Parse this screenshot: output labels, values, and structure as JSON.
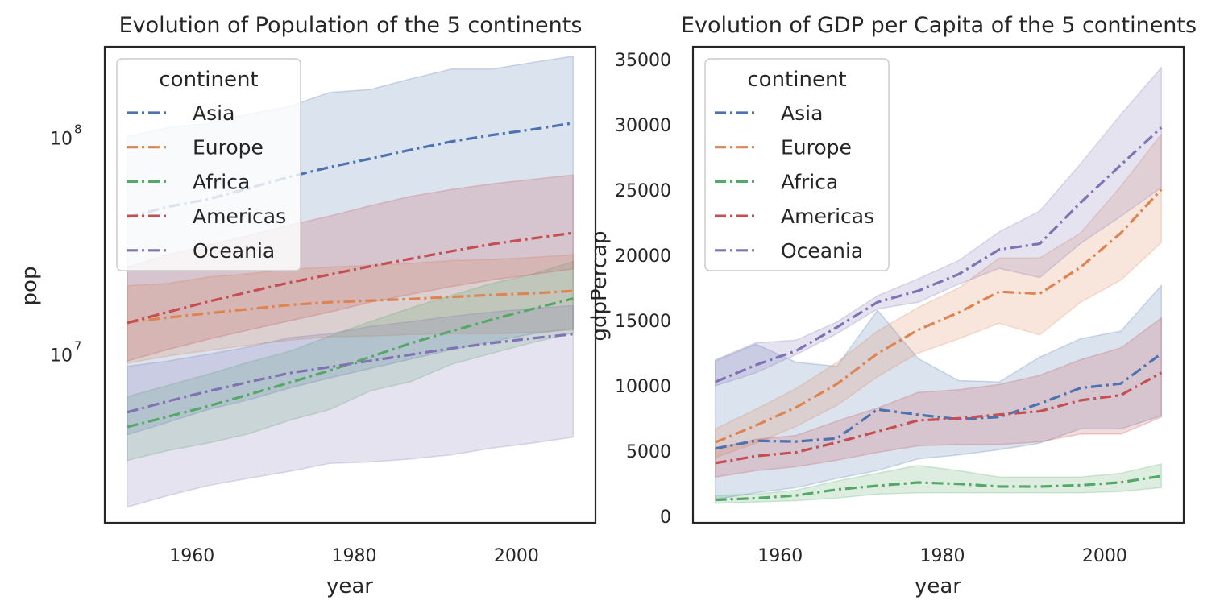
{
  "chart_data": [
    {
      "type": "line",
      "title": "Evolution of Population of the 5 continents",
      "xlabel": "year",
      "ylabel": "pop",
      "yscale": "log",
      "xlim": [
        1949.25,
        2009.75
      ],
      "ylim": [
        1650000,
        260000000
      ],
      "xticks": [
        1960,
        1980,
        2000
      ],
      "yticks": [
        {
          "value": 10000000,
          "base": "10",
          "exp": "7"
        },
        {
          "value": 100000000,
          "base": "10",
          "exp": "8"
        }
      ],
      "legend": {
        "title": "continent",
        "placement": "top-left"
      },
      "grid": false,
      "series": [
        {
          "name": "Asia",
          "color": "#4c72b0",
          "x": [
            1952,
            1957,
            1962,
            1967,
            1972,
            1977,
            1982,
            1987,
            1992,
            1997,
            2002,
            2007
          ],
          "values": [
            42300000,
            47400000,
            51400000,
            57700000,
            65200000,
            72300000,
            79100000,
            87000000,
            94900000,
            101700000,
            107900000,
            115500000
          ],
          "lower": [
            4200000,
            4800000,
            5500000,
            6100000,
            6900000,
            7700000,
            8500000,
            9400000,
            10400000,
            11300000,
            12300000,
            13000000
          ],
          "upper": [
            100000000,
            110000000,
            115000000,
            127000000,
            138000000,
            160000000,
            165000000,
            185000000,
            205000000,
            205000000,
            220000000,
            235000000
          ]
        },
        {
          "name": "Europe",
          "color": "#dd8452",
          "x": [
            1952,
            1957,
            1962,
            1967,
            1972,
            1977,
            1982,
            1987,
            1992,
            1997,
            2002,
            2007
          ],
          "values": [
            13900000,
            14600000,
            15300000,
            16000000,
            16700000,
            17200000,
            17500000,
            17800000,
            18200000,
            18600000,
            18900000,
            19400000
          ],
          "lower": [
            9000000,
            9700000,
            10300000,
            10900000,
            11500000,
            11900000,
            12000000,
            12200000,
            12300000,
            12300000,
            12500000,
            12800000
          ],
          "upper": [
            20500000,
            21000000,
            22500000,
            23300000,
            24400000,
            25000000,
            25500000,
            26000000,
            26800000,
            27100000,
            27700000,
            28500000
          ]
        },
        {
          "name": "Africa",
          "color": "#55a868",
          "x": [
            1952,
            1957,
            1962,
            1967,
            1972,
            1977,
            1982,
            1987,
            1992,
            1997,
            2002,
            2007
          ],
          "values": [
            4570000,
            5090000,
            5700000,
            6450000,
            7310000,
            8330000,
            9620000,
            11130000,
            12650000,
            14310000,
            16030000,
            17880000
          ],
          "lower": [
            3200000,
            3550000,
            3850000,
            4250000,
            4900000,
            5500000,
            6700000,
            7400000,
            8900000,
            10000000,
            11200000,
            12400000
          ],
          "upper": [
            6300000,
            7100000,
            8000000,
            9100000,
            10200000,
            12000000,
            14000000,
            16200000,
            18500000,
            21000000,
            23200000,
            26500000
          ]
        },
        {
          "name": "Americas",
          "color": "#c44e52",
          "x": [
            1952,
            1957,
            1962,
            1967,
            1972,
            1977,
            1982,
            1987,
            1992,
            1997,
            2002,
            2007
          ],
          "values": [
            13800000,
            15500000,
            17300000,
            19200000,
            21200000,
            23100000,
            25200000,
            27300000,
            29600000,
            31900000,
            33900000,
            35950000
          ],
          "lower": [
            9200000,
            10400000,
            11600000,
            12800000,
            14100000,
            15500000,
            17200000,
            18700000,
            20300000,
            21800000,
            23100000,
            24500000
          ],
          "upper": [
            25000000,
            28500000,
            31500000,
            35000000,
            39000000,
            43000000,
            48000000,
            53000000,
            57000000,
            60500000,
            63500000,
            66500000
          ]
        },
        {
          "name": "Oceania",
          "color": "#8172b3",
          "x": [
            1952,
            1957,
            1962,
            1967,
            1972,
            1977,
            1982,
            1987,
            1992,
            1997,
            2002,
            2007
          ],
          "values": [
            5340000,
            6000000,
            6680000,
            7370000,
            8100000,
            8640000,
            9230000,
            9860000,
            10530000,
            11150000,
            11730000,
            12270000
          ],
          "lower": [
            1950000,
            2200000,
            2450000,
            2650000,
            2850000,
            3100000,
            3150000,
            3250000,
            3400000,
            3650000,
            3850000,
            4100000
          ],
          "upper": [
            8700000,
            9200000,
            9900000,
            10700000,
            11800000,
            12300000,
            13300000,
            14000000,
            14800000,
            15500000,
            16100000,
            16600000
          ]
        }
      ]
    },
    {
      "type": "line",
      "title": "Evolution of GDP per Capita of the 5 continents",
      "xlabel": "year",
      "ylabel": "gdpPercap",
      "xlim": [
        1949.25,
        2009.75
      ],
      "ylim": [
        -500,
        36000
      ],
      "xticks": [
        1960,
        1980,
        2000
      ],
      "yticks": [
        0,
        5000,
        10000,
        15000,
        20000,
        25000,
        30000,
        35000
      ],
      "legend": {
        "title": "continent",
        "placement": "top-left"
      },
      "grid": false,
      "series": [
        {
          "name": "Asia",
          "color": "#4c72b0",
          "x": [
            1952,
            1957,
            1962,
            1967,
            1972,
            1977,
            1982,
            1987,
            1992,
            1997,
            2002,
            2007
          ],
          "values": [
            5195,
            5788,
            5729,
            5971,
            8187,
            7791,
            7434,
            7608,
            8640,
            9834,
            10174,
            12473
          ],
          "lower": [
            1300,
            1800,
            2200,
            2900,
            3500,
            4400,
            4700,
            5100,
            5600,
            6700,
            6700,
            7700
          ],
          "upper": [
            11900,
            13200,
            11800,
            11500,
            15800,
            12100,
            10400,
            10300,
            12200,
            13600,
            14200,
            17700
          ]
        },
        {
          "name": "Europe",
          "color": "#dd8452",
          "x": [
            1952,
            1957,
            1962,
            1967,
            1972,
            1977,
            1982,
            1987,
            1992,
            1997,
            2002,
            2007
          ],
          "values": [
            5661,
            6963,
            8365,
            10144,
            12480,
            14284,
            15618,
            17214,
            17062,
            19077,
            21712,
            25054
          ],
          "lower": [
            4500,
            5600,
            6900,
            8500,
            10700,
            12500,
            13600,
            14800,
            13900,
            16400,
            18100,
            21000
          ],
          "upper": [
            6700,
            8200,
            9800,
            11800,
            14200,
            16000,
            17500,
            19800,
            19800,
            21700,
            25300,
            29300
          ]
        },
        {
          "name": "Africa",
          "color": "#55a868",
          "x": [
            1952,
            1957,
            1962,
            1967,
            1972,
            1977,
            1982,
            1987,
            1992,
            1997,
            2002,
            2007
          ],
          "values": [
            1253,
            1385,
            1598,
            2050,
            2340,
            2586,
            2482,
            2283,
            2282,
            2379,
            2599,
            3089
          ],
          "lower": [
            1000,
            1100,
            1200,
            1400,
            1700,
            1800,
            1800,
            1800,
            1800,
            1800,
            1900,
            2200
          ],
          "upper": [
            1600,
            1700,
            2000,
            2700,
            3300,
            3900,
            3500,
            3000,
            3000,
            3000,
            3300,
            4000
          ]
        },
        {
          "name": "Americas",
          "color": "#c44e52",
          "x": [
            1952,
            1957,
            1962,
            1967,
            1972,
            1977,
            1982,
            1987,
            1992,
            1997,
            2002,
            2007
          ],
          "values": [
            4079,
            4616,
            4902,
            5668,
            6491,
            7352,
            7507,
            7793,
            8045,
            8889,
            9288,
            11003
          ],
          "lower": [
            3000,
            3500,
            3800,
            4300,
            4900,
            5400,
            5500,
            5500,
            5700,
            6300,
            6300,
            7600
          ],
          "upper": [
            5200,
            5900,
            6200,
            7300,
            8300,
            9500,
            9700,
            10100,
            10800,
            12000,
            12900,
            15200
          ]
        },
        {
          "name": "Oceania",
          "color": "#8172b3",
          "x": [
            1952,
            1957,
            1962,
            1967,
            1972,
            1977,
            1982,
            1987,
            1992,
            1997,
            2002,
            2007
          ],
          "values": [
            10298,
            11599,
            12696,
            14495,
            16417,
            17283,
            18555,
            20448,
            20894,
            24024,
            26938,
            29810
          ],
          "lower": [
            10000,
            11000,
            12400,
            14000,
            15900,
            16400,
            17800,
            19000,
            18300,
            20900,
            23000,
            25200
          ],
          "upper": [
            12000,
            13300,
            13500,
            14900,
            16900,
            18200,
            19600,
            21800,
            23400,
            27000,
            30800,
            34400
          ]
        }
      ]
    }
  ]
}
